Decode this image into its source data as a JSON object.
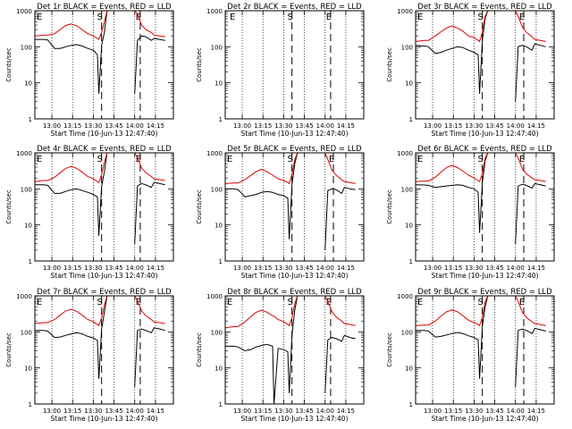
{
  "panels_common": {
    "ylabel": "Counts/sec",
    "xlabel": "Start Time (10-Jun-13 12:47:40)",
    "xticks": [
      "13:00",
      "13:15",
      "13:30",
      "13:45",
      "14:00",
      "14:15"
    ],
    "yticks": [
      "1",
      "10",
      "100",
      "1000"
    ],
    "ylim": [
      1,
      1000
    ],
    "yscale": "log",
    "series_colors": {
      "events": "#000000",
      "lld": "#dd0000"
    }
  },
  "chart_data": [
    {
      "type": "line",
      "title": "Det 1r BLACK = Events, RED = LLD",
      "markers": [
        {
          "label": "E",
          "x": "12:47"
        },
        {
          "label": "S",
          "x": "13:36"
        },
        {
          "label": "E",
          "x": "14:04"
        }
      ],
      "x": [
        "12:48",
        "12:54",
        "12:57",
        "13:02",
        "13:06",
        "13:10",
        "13:14",
        "13:18",
        "13:22",
        "13:26",
        "13:30",
        "13:33",
        "13:34",
        "13:36",
        "13:38",
        "13:40",
        "13:58",
        "14:00",
        "14:02",
        "14:05",
        "14:08",
        "14:12",
        "14:14",
        "14:18",
        "14:22"
      ],
      "series": [
        {
          "name": "Events",
          "values": [
            160,
            160,
            155,
            90,
            90,
            100,
            110,
            115,
            105,
            90,
            80,
            60,
            5,
            110,
            250,
            1000,
            null,
            5,
            150,
            200,
            190,
            150,
            170,
            160,
            150
          ]
        },
        {
          "name": "LLD",
          "values": [
            200,
            210,
            210,
            230,
            300,
            390,
            430,
            380,
            300,
            230,
            200,
            170,
            160,
            250,
            500,
            1000,
            null,
            1000,
            800,
            400,
            300,
            250,
            210,
            200,
            190
          ]
        }
      ]
    },
    {
      "type": "line",
      "title": "Det 2r BLACK = Events, RED = LLD",
      "markers": [
        {
          "label": "E",
          "x": "12:49"
        },
        {
          "label": "S",
          "x": "13:36"
        },
        {
          "label": "E",
          "x": "14:04"
        }
      ],
      "x": [],
      "series": []
    },
    {
      "type": "line",
      "title": "Det 3r BLACK = Events, RED = LLD",
      "markers": [
        {
          "label": "E",
          "x": "12:47"
        },
        {
          "label": "S",
          "x": "13:36"
        },
        {
          "label": "E",
          "x": "14:06"
        }
      ],
      "x": [
        "12:48",
        "12:54",
        "12:57",
        "13:02",
        "13:06",
        "13:10",
        "13:14",
        "13:18",
        "13:22",
        "13:26",
        "13:30",
        "13:33",
        "13:34",
        "13:36",
        "13:38",
        "13:40",
        "13:58",
        "14:00",
        "14:02",
        "14:05",
        "14:08",
        "14:12",
        "14:14",
        "14:18",
        "14:22"
      ],
      "series": [
        {
          "name": "Events",
          "values": [
            110,
            105,
            100,
            65,
            70,
            80,
            90,
            100,
            95,
            80,
            70,
            60,
            5,
            150,
            600,
            1000,
            null,
            3,
            100,
            110,
            100,
            80,
            120,
            110,
            100
          ]
        },
        {
          "name": "LLD",
          "values": [
            140,
            150,
            150,
            200,
            260,
            330,
            380,
            330,
            270,
            200,
            180,
            150,
            140,
            260,
            700,
            1000,
            null,
            1000,
            700,
            350,
            250,
            190,
            160,
            150,
            140
          ]
        }
      ]
    },
    {
      "type": "line",
      "title": "Det 4r BLACK = Events, RED = LLD",
      "markers": [
        {
          "label": "E",
          "x": "12:47"
        },
        {
          "label": "S",
          "x": "13:36"
        },
        {
          "label": "E",
          "x": "14:04"
        }
      ],
      "x": [
        "12:48",
        "12:54",
        "12:57",
        "13:02",
        "13:06",
        "13:10",
        "13:14",
        "13:18",
        "13:22",
        "13:26",
        "13:30",
        "13:33",
        "13:34",
        "13:36",
        "13:38",
        "13:40",
        "13:58",
        "14:00",
        "14:02",
        "14:05",
        "14:08",
        "14:12",
        "14:14",
        "14:18",
        "14:22"
      ],
      "series": [
        {
          "name": "Events",
          "values": [
            130,
            130,
            125,
            75,
            75,
            85,
            95,
            100,
            90,
            80,
            70,
            60,
            5,
            120,
            300,
            1000,
            null,
            3,
            120,
            140,
            130,
            110,
            150,
            140,
            130
          ]
        },
        {
          "name": "LLD",
          "values": [
            160,
            170,
            170,
            210,
            280,
            370,
            420,
            370,
            290,
            220,
            190,
            160,
            150,
            250,
            550,
            1000,
            null,
            1000,
            750,
            380,
            280,
            220,
            190,
            180,
            170
          ]
        }
      ]
    },
    {
      "type": "line",
      "title": "Det 5r BLACK = Events, RED = LLD",
      "markers": [
        {
          "label": "E",
          "x": "12:47"
        },
        {
          "label": "S",
          "x": "13:36"
        },
        {
          "label": "E",
          "x": "14:06"
        }
      ],
      "x": [
        "12:48",
        "12:54",
        "12:57",
        "13:02",
        "13:06",
        "13:10",
        "13:14",
        "13:18",
        "13:22",
        "13:26",
        "13:30",
        "13:33",
        "13:34",
        "13:36",
        "13:38",
        "13:40",
        "13:58",
        "14:00",
        "14:02",
        "14:05",
        "14:08",
        "14:12",
        "14:14",
        "14:18",
        "14:22"
      ],
      "series": [
        {
          "name": "Events",
          "values": [
            100,
            100,
            95,
            60,
            65,
            70,
            80,
            85,
            80,
            70,
            65,
            55,
            4,
            130,
            500,
            1000,
            null,
            2,
            90,
            100,
            95,
            75,
            110,
            100,
            95
          ]
        },
        {
          "name": "LLD",
          "values": [
            140,
            145,
            145,
            180,
            230,
            300,
            350,
            300,
            240,
            190,
            170,
            150,
            140,
            250,
            650,
            1000,
            null,
            1000,
            650,
            330,
            240,
            180,
            160,
            150,
            140
          ]
        }
      ]
    },
    {
      "type": "line",
      "title": "Det 6r BLACK = Events, RED = LLD",
      "markers": [
        {
          "label": "E",
          "x": "12:47"
        },
        {
          "label": "S",
          "x": "13:36"
        },
        {
          "label": "E",
          "x": "14:06"
        }
      ],
      "x": [
        "12:48",
        "12:54",
        "12:57",
        "13:02",
        "13:06",
        "13:10",
        "13:14",
        "13:18",
        "13:22",
        "13:26",
        "13:30",
        "13:33",
        "13:34",
        "13:36",
        "13:38",
        "13:40",
        "13:58",
        "14:00",
        "14:02",
        "14:05",
        "14:08",
        "14:12",
        "14:14",
        "14:18",
        "14:22"
      ],
      "series": [
        {
          "name": "Events",
          "values": [
            130,
            128,
            125,
            110,
            115,
            120,
            125,
            130,
            125,
            110,
            100,
            80,
            6,
            150,
            600,
            1000,
            null,
            3,
            120,
            135,
            125,
            105,
            140,
            130,
            120
          ]
        },
        {
          "name": "LLD",
          "values": [
            160,
            165,
            165,
            210,
            290,
            390,
            450,
            390,
            310,
            240,
            200,
            170,
            160,
            270,
            700,
            1000,
            null,
            1000,
            720,
            360,
            260,
            200,
            180,
            170,
            160
          ]
        }
      ]
    },
    {
      "type": "line",
      "title": "Det 7r BLACK = Events, RED = LLD",
      "markers": [
        {
          "label": "E",
          "x": "12:47"
        },
        {
          "label": "S",
          "x": "13:36"
        },
        {
          "label": "E",
          "x": "14:04"
        }
      ],
      "x": [
        "12:48",
        "12:54",
        "12:57",
        "13:02",
        "13:06",
        "13:10",
        "13:14",
        "13:18",
        "13:22",
        "13:26",
        "13:30",
        "13:33",
        "13:34",
        "13:36",
        "13:38",
        "13:40",
        "13:58",
        "14:00",
        "14:02",
        "14:05",
        "14:08",
        "14:12",
        "14:14",
        "14:18",
        "14:22"
      ],
      "series": [
        {
          "name": "Events",
          "values": [
            110,
            110,
            105,
            70,
            72,
            80,
            88,
            95,
            88,
            75,
            68,
            58,
            5,
            120,
            350,
            1000,
            null,
            3,
            110,
            120,
            110,
            95,
            130,
            120,
            110
          ]
        },
        {
          "name": "LLD",
          "values": [
            170,
            180,
            180,
            220,
            290,
            380,
            420,
            370,
            290,
            220,
            190,
            160,
            150,
            250,
            560,
            1000,
            null,
            1000,
            740,
            380,
            280,
            220,
            190,
            180,
            170
          ]
        }
      ]
    },
    {
      "type": "line",
      "title": "Det 8r BLACK = Events, RED = LLD",
      "markers": [
        {
          "label": "E",
          "x": "12:47"
        },
        {
          "label": "S",
          "x": "13:36"
        },
        {
          "label": "E",
          "x": "14:04"
        }
      ],
      "x": [
        "12:48",
        "12:54",
        "12:57",
        "13:02",
        "13:06",
        "13:10",
        "13:14",
        "13:18",
        "13:22",
        "13:23",
        "13:26",
        "13:30",
        "13:33",
        "13:34",
        "13:36",
        "13:38",
        "13:40",
        "13:58",
        "14:00",
        "14:02",
        "14:05",
        "14:08",
        "14:12",
        "14:14",
        "14:18",
        "14:22"
      ],
      "series": [
        {
          "name": "Events",
          "values": [
            40,
            40,
            38,
            30,
            32,
            38,
            42,
            45,
            40,
            1,
            35,
            32,
            28,
            2,
            80,
            400,
            1000,
            null,
            2,
            60,
            70,
            65,
            55,
            80,
            70,
            65
          ]
        },
        {
          "name": "LLD",
          "values": [
            130,
            140,
            140,
            190,
            260,
            350,
            400,
            350,
            280,
            270,
            220,
            190,
            160,
            150,
            250,
            600,
            1000,
            null,
            1000,
            700,
            360,
            260,
            200,
            170,
            160,
            150
          ]
        }
      ]
    },
    {
      "type": "line",
      "title": "Det 9r BLACK = Events, RED = LLD",
      "markers": [
        {
          "label": "E",
          "x": "12:47"
        },
        {
          "label": "S",
          "x": "13:36"
        },
        {
          "label": "E",
          "x": "14:06"
        }
      ],
      "x": [
        "12:48",
        "12:54",
        "12:57",
        "13:02",
        "13:06",
        "13:10",
        "13:14",
        "13:18",
        "13:22",
        "13:26",
        "13:30",
        "13:33",
        "13:34",
        "13:36",
        "13:38",
        "13:40",
        "13:58",
        "14:00",
        "14:02",
        "14:05",
        "14:08",
        "14:12",
        "14:14",
        "14:18",
        "14:22"
      ],
      "series": [
        {
          "name": "Events",
          "values": [
            110,
            110,
            105,
            72,
            75,
            82,
            90,
            96,
            90,
            78,
            70,
            60,
            5,
            140,
            500,
            1000,
            null,
            3,
            110,
            120,
            110,
            90,
            125,
            115,
            105
          ]
        },
        {
          "name": "LLD",
          "values": [
            150,
            155,
            155,
            200,
            270,
            360,
            410,
            360,
            280,
            210,
            180,
            160,
            150,
            260,
            680,
            1000,
            null,
            1000,
            700,
            350,
            250,
            190,
            170,
            160,
            150
          ]
        }
      ]
    }
  ]
}
